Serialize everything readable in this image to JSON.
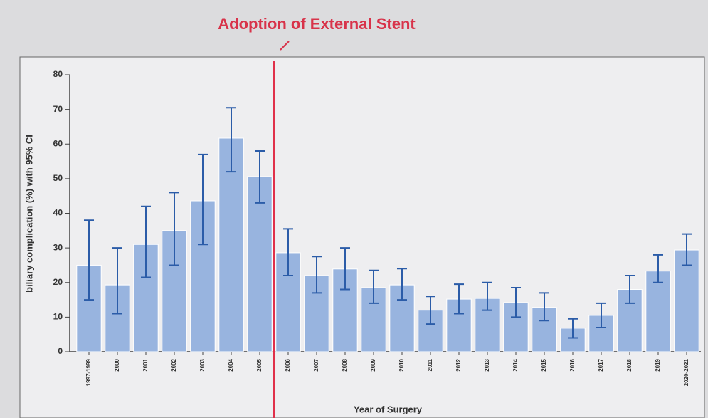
{
  "chart_data": {
    "type": "bar",
    "annotation": "Adoption of External Stent",
    "xlabel": "Year of Surgery",
    "ylabel": "biliary complication (%) with 95% CI",
    "categories": [
      "1997-1999",
      "2000",
      "2001",
      "2002",
      "2003",
      "2004",
      "2005",
      "2006",
      "2007",
      "2008",
      "2009",
      "2010",
      "2011",
      "2012",
      "2013",
      "2014",
      "2015",
      "2016",
      "2017",
      "2018",
      "2019",
      "2020-2021"
    ],
    "series": [
      {
        "color": "#98b4df",
        "values": [
          25,
          19.3,
          31,
          35,
          43.6,
          61.7,
          50.6,
          28.6,
          22,
          23.9,
          18.5,
          19.3,
          12,
          15.2,
          15.4,
          14.2,
          12.8,
          6.8,
          10.5,
          18,
          23.3,
          29.4
        ],
        "lower": [
          15,
          11,
          21.5,
          25,
          31,
          52,
          43,
          22,
          17,
          18,
          14,
          15,
          8,
          11,
          12,
          10,
          9,
          4,
          7,
          14,
          20,
          25
        ],
        "upper": [
          38,
          30,
          42,
          46,
          57,
          70.5,
          58,
          35.5,
          27.5,
          30,
          23.5,
          24,
          16,
          19.5,
          20,
          18.5,
          17,
          9.5,
          14,
          22,
          28,
          34
        ]
      }
    ],
    "ylim": [
      0,
      80
    ],
    "yticks": [
      0,
      10,
      20,
      30,
      40,
      50,
      60,
      70,
      80
    ]
  }
}
